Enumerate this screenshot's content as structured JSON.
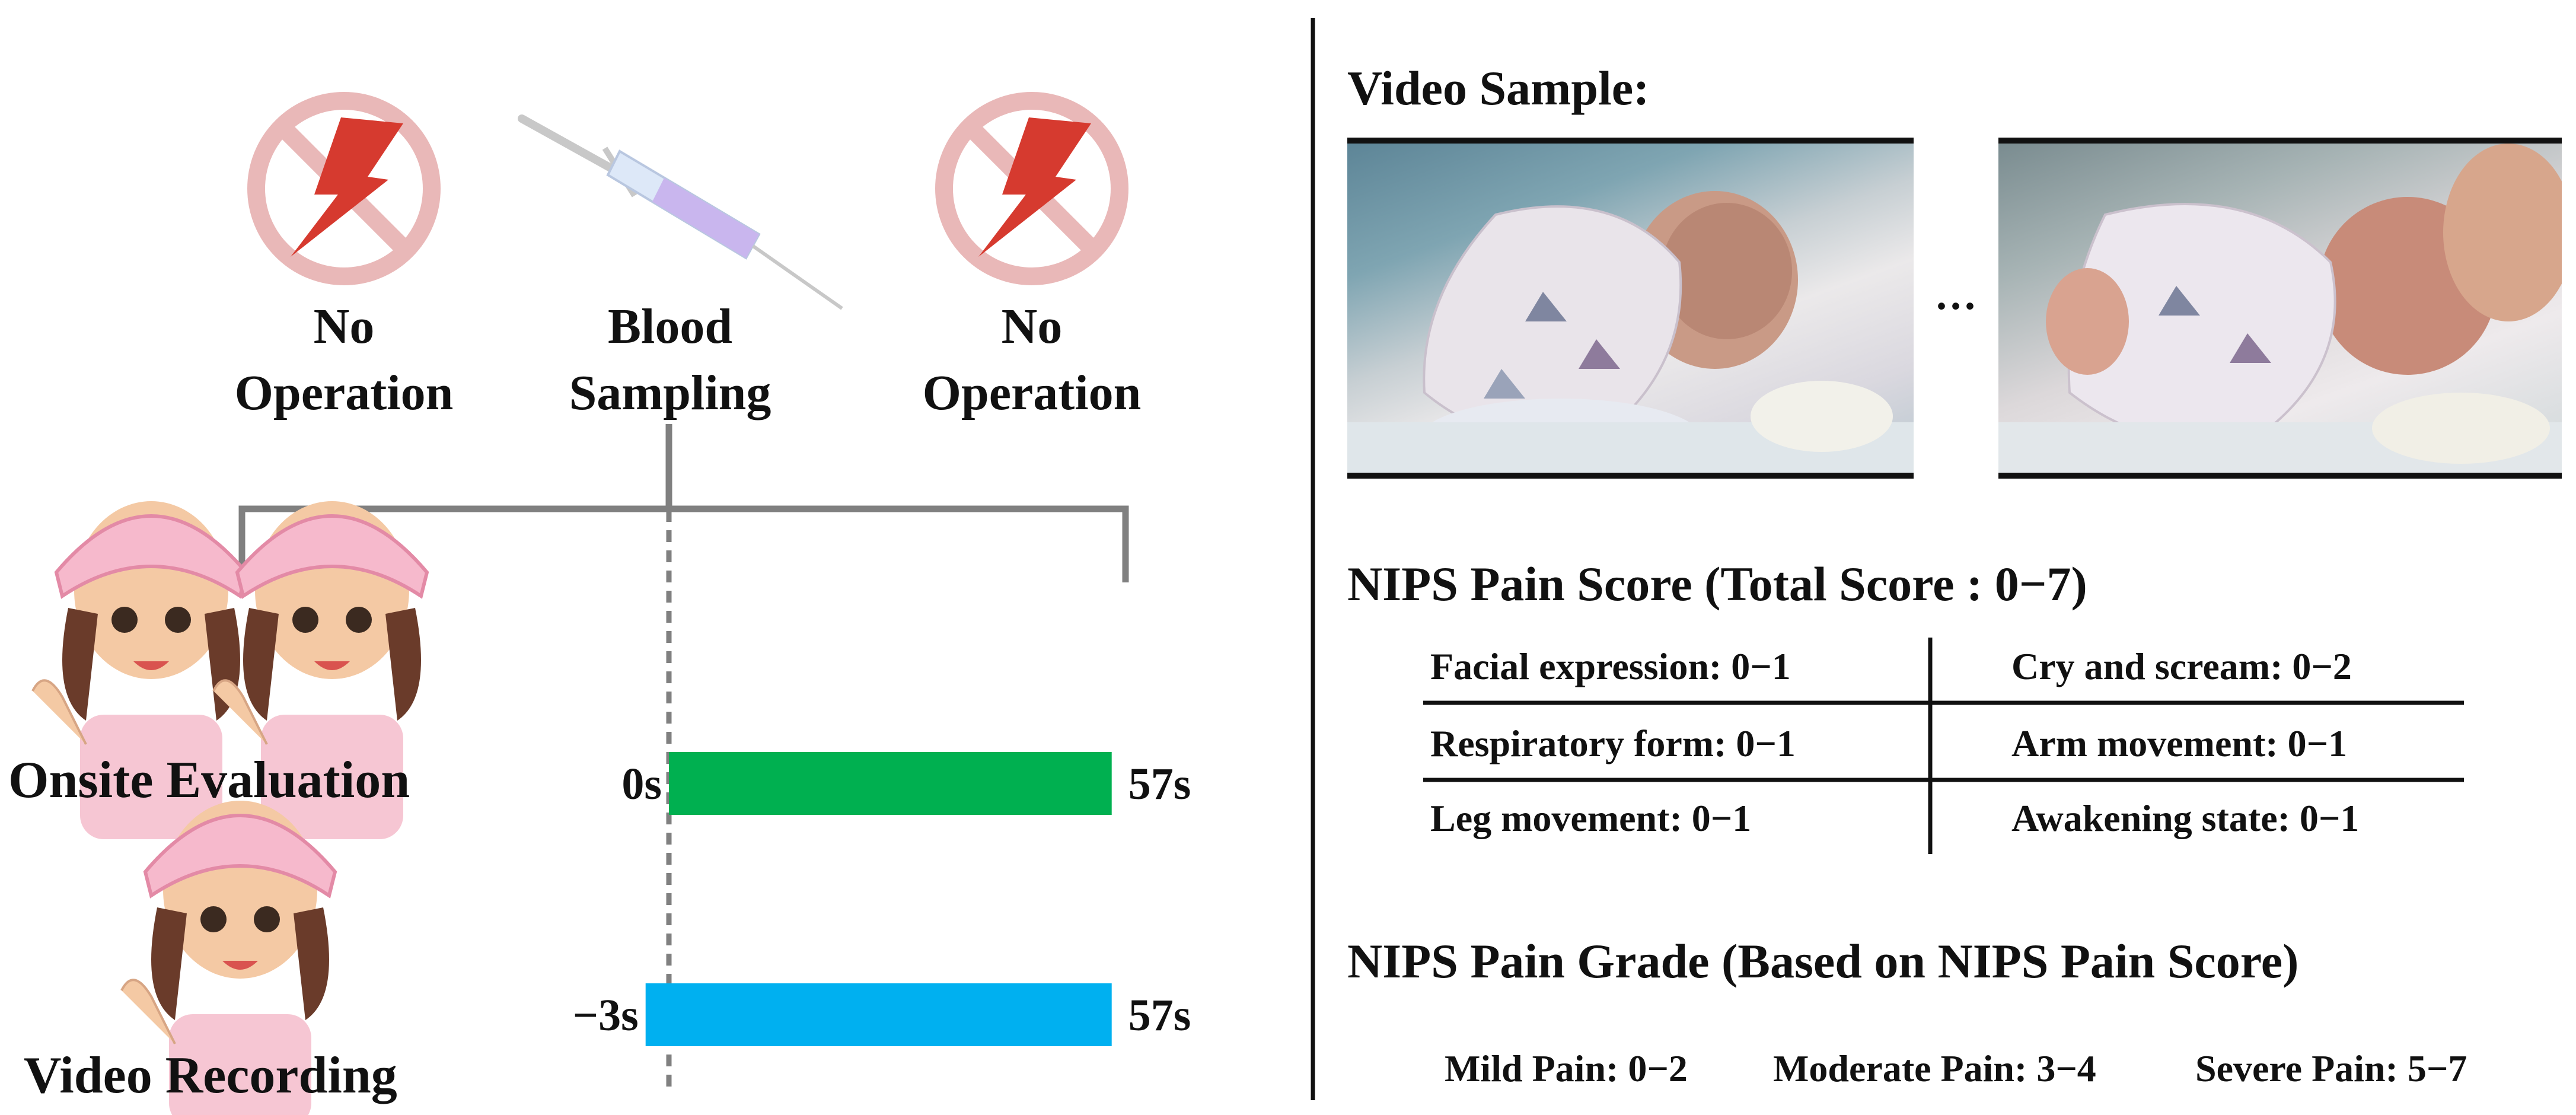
{
  "left": {
    "phases": [
      {
        "line1": "No",
        "line2": "Operation",
        "icon": "no-operation-icon"
      },
      {
        "line1": "Blood",
        "line2": "Sampling",
        "icon": "syringe-icon"
      },
      {
        "line1": "No",
        "line2": "Operation",
        "icon": "no-operation-icon"
      }
    ],
    "rows": [
      {
        "label": "Onsite Evaluation",
        "start": 0,
        "end": 57,
        "start_label": "0s",
        "end_label": "57s",
        "color": "#00b050"
      },
      {
        "label": "Video Recording",
        "start": -3,
        "end": 57,
        "start_label": "−3s",
        "end_label": "57s",
        "color": "#00b0f0"
      }
    ],
    "icon_avatar": "nurse-avatar-icon"
  },
  "right": {
    "video_title": "Video Sample:",
    "ellipsis": "···",
    "score_title": "NIPS Pain Score (Total Score : 0−7)",
    "score_items": [
      [
        "Facial expression: 0−1",
        "Cry and scream: 0−2"
      ],
      [
        "Respiratory form: 0−1",
        "Arm movement: 0−1"
      ],
      [
        "Leg movement: 0−1",
        "Awakening state: 0−1"
      ]
    ],
    "grade_title": "NIPS Pain Grade (Based on NIPS Pain Score)",
    "grades": [
      "Mild Pain: 0−2",
      "Moderate Pain: 3−4",
      "Severe Pain: 5−7"
    ]
  }
}
